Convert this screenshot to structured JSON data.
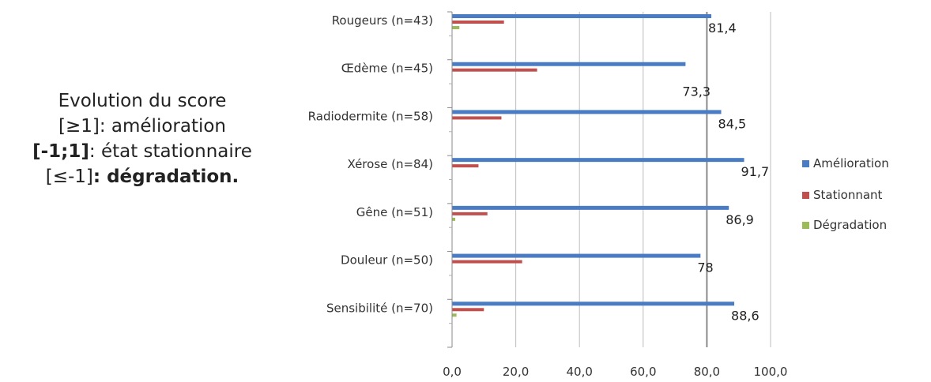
{
  "annotation": {
    "line1": "Evolution du score",
    "line2_bracket": "[≥1]",
    "line2_text": ": amélioration",
    "line3_bracket": "[-1;1]",
    "line3_text": ": état stationnaire",
    "line4_bracket": "[≤-1]",
    "line4_text": ": dégradation."
  },
  "chart_data": {
    "type": "bar",
    "orientation": "horizontal",
    "categories": [
      "Rougeurs (n=43)",
      "Œdème (n=45)",
      "Radiodermite (n=58)",
      "Xérose (n=84)",
      "Gêne (n=51)",
      "Douleur (n=50)",
      "Sensibilité (n=70)"
    ],
    "series": [
      {
        "name": "Amélioration",
        "color": "#4a7cc4",
        "values": [
          81.4,
          73.3,
          84.5,
          91.7,
          86.9,
          78,
          88.6
        ]
      },
      {
        "name": "Stationnant",
        "color": "#c0504d",
        "values": [
          16.3,
          26.7,
          15.5,
          8.3,
          11.1,
          22,
          10
        ]
      },
      {
        "name": "Dégradation",
        "color": "#9bbb59",
        "values": [
          2.3,
          0,
          0,
          0,
          1,
          0,
          1.4
        ]
      }
    ],
    "data_labels": [
      "81,4",
      "73,3",
      "84,5",
      "91,7",
      "86,9",
      "78",
      "88,6"
    ],
    "xlim": [
      0,
      100
    ],
    "xticks": [
      "0,0",
      "20,0",
      "40,0",
      "60,0",
      "80,0",
      "100,0"
    ],
    "grid": true,
    "legend": "right"
  }
}
